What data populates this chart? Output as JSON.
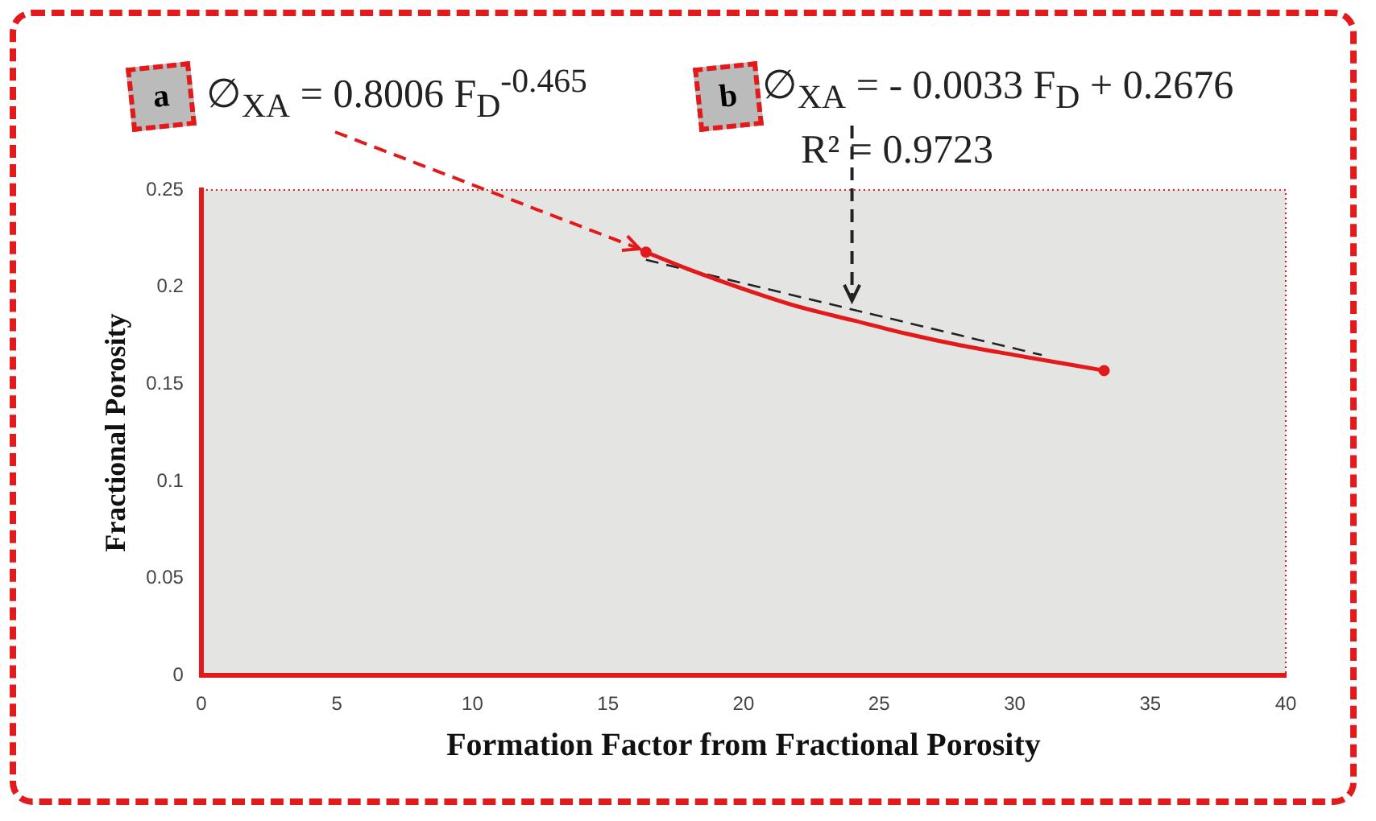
{
  "chart_data": {
    "type": "scatter",
    "xlabel": "Formation Factor from Fractional Porosity",
    "ylabel": "Fractional Porosity",
    "xlim": [
      0,
      40
    ],
    "ylim": [
      0,
      0.25
    ],
    "xticks": [
      0,
      5,
      10,
      15,
      20,
      25,
      30,
      35,
      40
    ],
    "yticks": [
      0,
      0.05,
      0.1,
      0.15,
      0.2,
      0.25
    ],
    "grid": false,
    "legend": false,
    "series": [
      {
        "type": "scatter",
        "color": "#e31a1c",
        "marker": "circle",
        "x": [
          16.4,
          33.3
        ],
        "values": [
          0.218,
          0.157
        ]
      },
      {
        "type": "line",
        "color": "#e31a1c",
        "line_style": "solid",
        "marker": "none",
        "x": [
          16.4,
          18,
          20,
          22,
          24,
          26,
          28,
          30,
          33.3
        ],
        "values": [
          0.218,
          0.209,
          0.199,
          0.19,
          0.183,
          0.176,
          0.17,
          0.165,
          0.157
        ]
      },
      {
        "type": "line",
        "color": "#222222",
        "line_style": "dashed",
        "marker": "none",
        "x": [
          16.4,
          31
        ],
        "values": [
          0.214,
          0.165
        ]
      }
    ],
    "annotations": [
      "a",
      {
        "text": "∅$_{XA}$ = 0.8006 F$_{D}$$^{-0.465}$",
        "x": 16.4,
        "y": 0.218
      },
      "b",
      {
        "text": "∅$_{XA}$ = - 0.0033 F$_{D}$ + 0.2676",
        "x": 24,
        "y": 0.188
      },
      "R² = 0.9723"
    ]
  }
}
